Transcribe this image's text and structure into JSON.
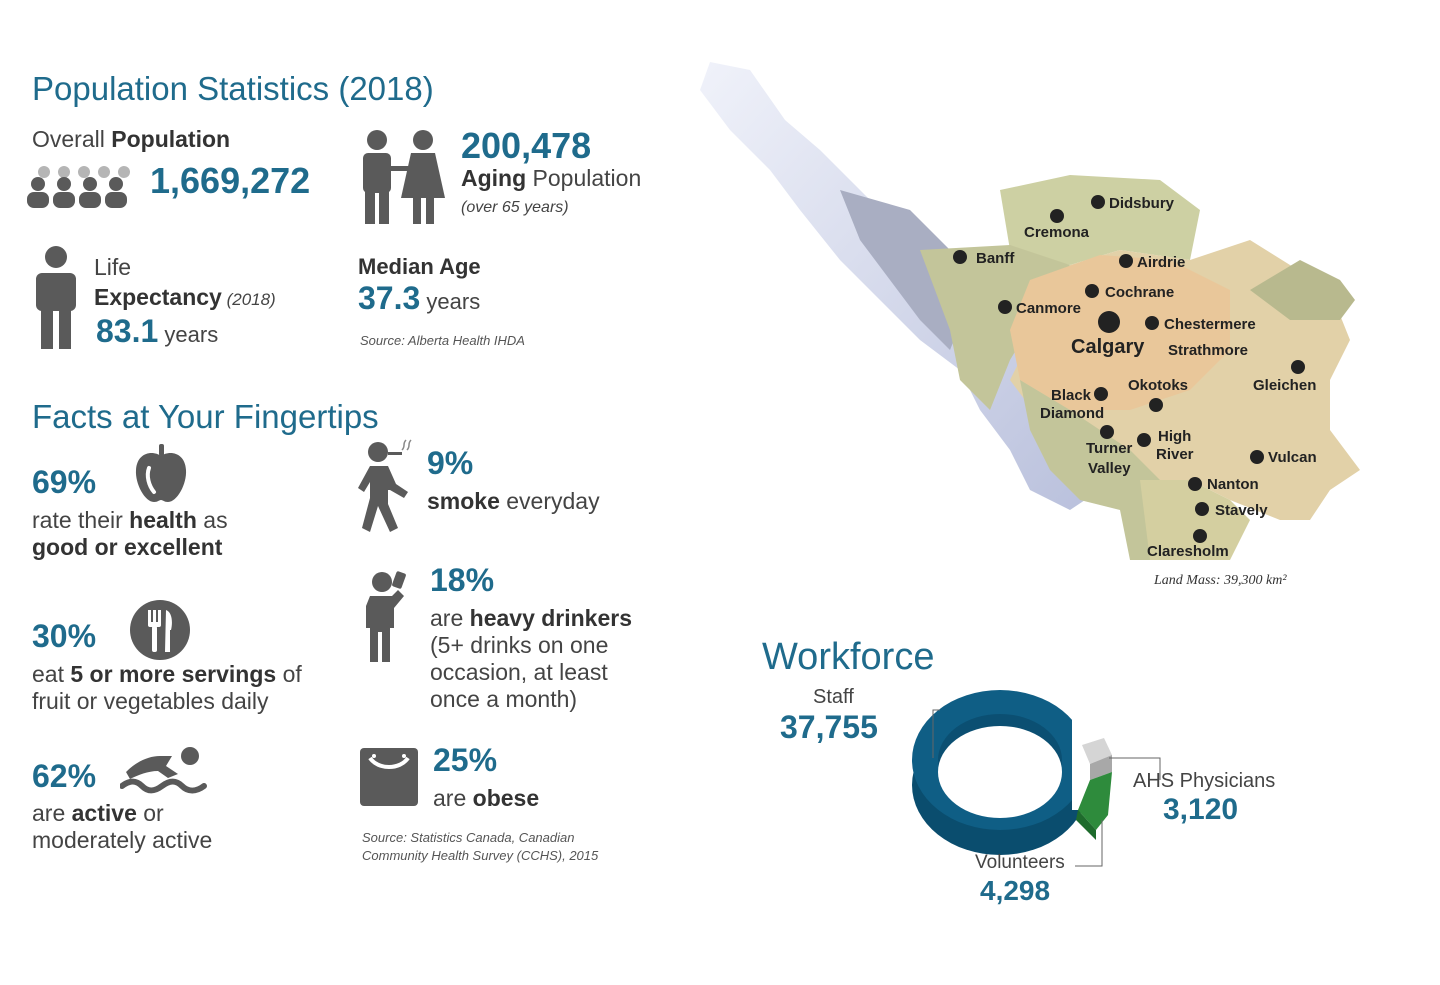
{
  "population": {
    "title": "Population Statistics (2018)",
    "overall_prefix": "Overall ",
    "overall_bold": "Population",
    "overall_value": "1,669,272",
    "aging_value": "200,478",
    "aging_bold": "Aging",
    "aging_rest": " Population",
    "aging_note": "(over 65 years)",
    "life_line1": "Life",
    "life_bold": "Expectancy",
    "life_note": " (2018)",
    "life_value": "83.1",
    "life_unit": " years",
    "median_label": "Median Age",
    "median_value": "37.3",
    "median_unit": " years",
    "source": "Source: Alberta Health IHDA"
  },
  "facts": {
    "title": "Facts at Your Fingertips",
    "health_pct": "69%",
    "health_l1a": "rate their ",
    "health_l1b": "health",
    "health_l1c": " as",
    "health_l2": "good or excellent",
    "fruit_pct": "30%",
    "fruit_l1a": "eat ",
    "fruit_l1b": "5 or more servings",
    "fruit_l1c": " of",
    "fruit_l2": "fruit or vegetables daily",
    "active_pct": "62%",
    "active_l1a": "are ",
    "active_l1b": "active",
    "active_l1c": " or",
    "active_l2": "moderately active",
    "smoke_pct": "9%",
    "smoke_bold": "smoke",
    "smoke_rest": " everyday",
    "drink_pct": "18%",
    "drink_l1a": "are ",
    "drink_l1b": "heavy drinkers",
    "drink_l2": "(5+ drinks on one",
    "drink_l3": "occasion, at least",
    "drink_l4": "once a month)",
    "obese_pct": "25%",
    "obese_a": "are ",
    "obese_b": "obese",
    "source_l1": "Source: Statistics Canada, Canadian",
    "source_l2": "Community Health Survey (CCHS), 2015"
  },
  "map": {
    "cities": {
      "didsbury": "Didsbury",
      "cremona": "Cremona",
      "banff": "Banff",
      "airdrie": "Airdrie",
      "cochrane": "Cochrane",
      "canmore": "Canmore",
      "chestermere": "Chestermere",
      "calgary": "Calgary",
      "strathmore": "Strathmore",
      "black": "Black",
      "diamond": "Diamond",
      "okotoks": "Okotoks",
      "gleichen": "Gleichen",
      "turner": "Turner",
      "valley": "Valley",
      "high": "High",
      "river": "River",
      "vulcan": "Vulcan",
      "nanton": "Nanton",
      "stavely": "Stavely",
      "claresholm": "Claresholm"
    },
    "land_mass": "Land Mass: 39,300 km²"
  },
  "workforce": {
    "title": "Workforce",
    "staff_label": "Staff",
    "staff_value": "37,755",
    "physicians_label": "AHS Physicians",
    "physicians_value": "3,120",
    "volunteers_label": "Volunteers",
    "volunteers_value": "4,298",
    "colors": {
      "staff": "#0f5e85",
      "volunteers": "#2e8b3c",
      "physicians": "#c8c8c8"
    }
  }
}
